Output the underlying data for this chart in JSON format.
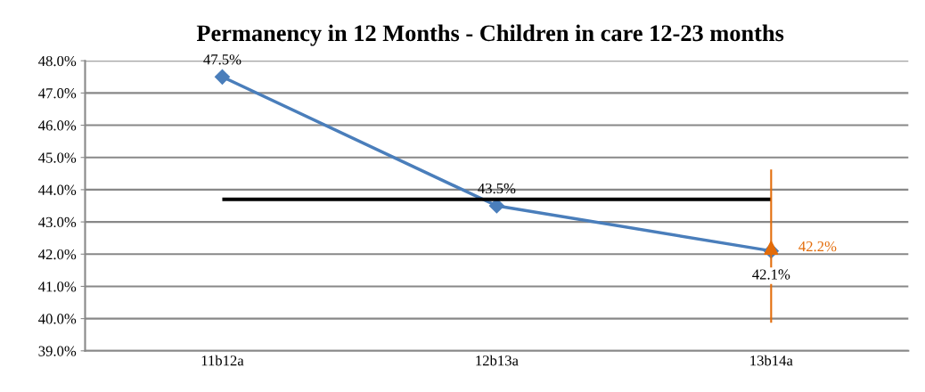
{
  "chart_data": {
    "type": "line",
    "title": "Permanency in 12 Months - Children in care 12-23 months",
    "categories": [
      "11b12a",
      "12b13a",
      "13b14a"
    ],
    "series": [
      {
        "color": "#4a7ebb",
        "marker": "diamond",
        "values": [
          47.5,
          43.5,
          42.1
        ],
        "value_labels": [
          "47.5%",
          "43.5%",
          "42.1%"
        ]
      },
      {
        "type": "line",
        "color": "#000000",
        "marker": "none",
        "values": [
          43.7,
          43.7,
          43.7
        ]
      },
      {
        "type": "scatter",
        "color": "#e36c0a",
        "marker": "triangle",
        "values": [
          null,
          null,
          42.2
        ],
        "errors": [
          null,
          null,
          [
            39.9,
            44.6
          ]
        ],
        "value_labels": [
          null,
          null,
          "42.2%"
        ]
      }
    ],
    "ylim": [
      39,
      48
    ],
    "yticks": [
      {
        "value": 39,
        "label": "39.0%"
      },
      {
        "value": 40,
        "label": "40.0%"
      },
      {
        "value": 41,
        "label": "41.0%"
      },
      {
        "value": 42,
        "label": "42.0%"
      },
      {
        "value": 43,
        "label": "43.0%"
      },
      {
        "value": 44,
        "label": "44.0%"
      },
      {
        "value": 45,
        "label": "45.0%"
      },
      {
        "value": 46,
        "label": "46.0%"
      },
      {
        "value": 47,
        "label": "47.0%"
      },
      {
        "value": 48,
        "label": "48.0%"
      }
    ],
    "grid": "y"
  }
}
